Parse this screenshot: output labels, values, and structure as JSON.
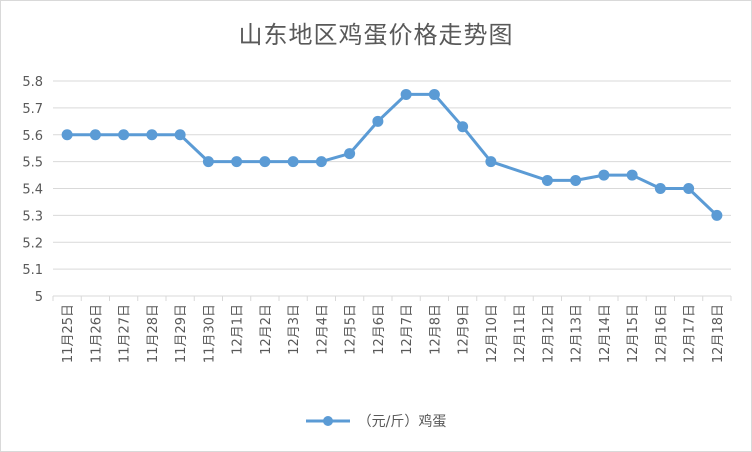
{
  "chart_data": {
    "type": "line",
    "title": "山东地区鸡蛋价格走势图",
    "categories": [
      "11月25日",
      "11月26日",
      "11月27日",
      "11月28日",
      "11月29日",
      "11月30日",
      "12月1日",
      "12月2日",
      "12月3日",
      "12月4日",
      "12月5日",
      "12月6日",
      "12月7日",
      "12月8日",
      "12月9日",
      "12月10日",
      "12月11日",
      "12月12日",
      "12月13日",
      "12月14日",
      "12月15日",
      "12月16日",
      "12月17日",
      "12月18日"
    ],
    "series": [
      {
        "name": "（元/斤）鸡蛋",
        "values": [
          5.6,
          5.6,
          5.6,
          5.6,
          5.6,
          5.5,
          5.5,
          5.5,
          5.5,
          5.5,
          5.53,
          5.65,
          5.75,
          5.75,
          5.63,
          5.5,
          null,
          5.43,
          5.43,
          5.45,
          5.45,
          5.4,
          5.4,
          5.3
        ],
        "color": "#5b9bd5"
      }
    ],
    "yticks": [
      "5",
      "5.1",
      "5.2",
      "5.3",
      "5.4",
      "5.5",
      "5.6",
      "5.7",
      "5.8"
    ],
    "ylim": [
      5,
      5.8
    ],
    "grid": true,
    "legend": "bottom"
  }
}
